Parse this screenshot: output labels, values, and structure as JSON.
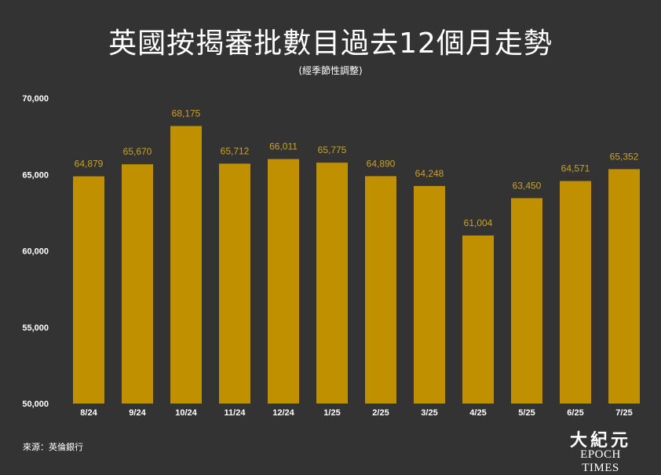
{
  "header": {
    "title": "英國按揭審批數目過去12個月走勢",
    "subtitle": "(經季節性調整)"
  },
  "footer": {
    "source": "來源：英倫銀行"
  },
  "logo": {
    "cjk": "大紀元",
    "en": "EPOCH TIMES"
  },
  "colors": {
    "background": "#333333",
    "bar": "#c09000",
    "value_label": "#c9a227",
    "text": "#ffffff"
  },
  "chart_data": {
    "type": "bar",
    "title": "英國按揭審批數目過去12個月走勢",
    "subtitle": "(經季節性調整)",
    "xlabel": "",
    "ylabel": "",
    "categories": [
      "8/24",
      "9/24",
      "10/24",
      "11/24",
      "12/24",
      "1/25",
      "2/25",
      "3/25",
      "4/25",
      "5/25",
      "6/25",
      "7/25"
    ],
    "values": [
      64879,
      65670,
      68175,
      65712,
      66011,
      65775,
      64890,
      64248,
      61004,
      63450,
      64571,
      65352
    ],
    "value_labels": [
      "64,879",
      "65,670",
      "68,175",
      "65,712",
      "66,011",
      "65,775",
      "64,890",
      "64,248",
      "61,004",
      "63,450",
      "64,571",
      "65,352"
    ],
    "ylim": [
      50000,
      70000
    ],
    "yticks": [
      50000,
      55000,
      60000,
      65000,
      70000
    ],
    "ytick_labels": [
      "50,000",
      "55,000",
      "60,000",
      "65,000",
      "70,000"
    ],
    "grid": false,
    "legend": "none"
  }
}
